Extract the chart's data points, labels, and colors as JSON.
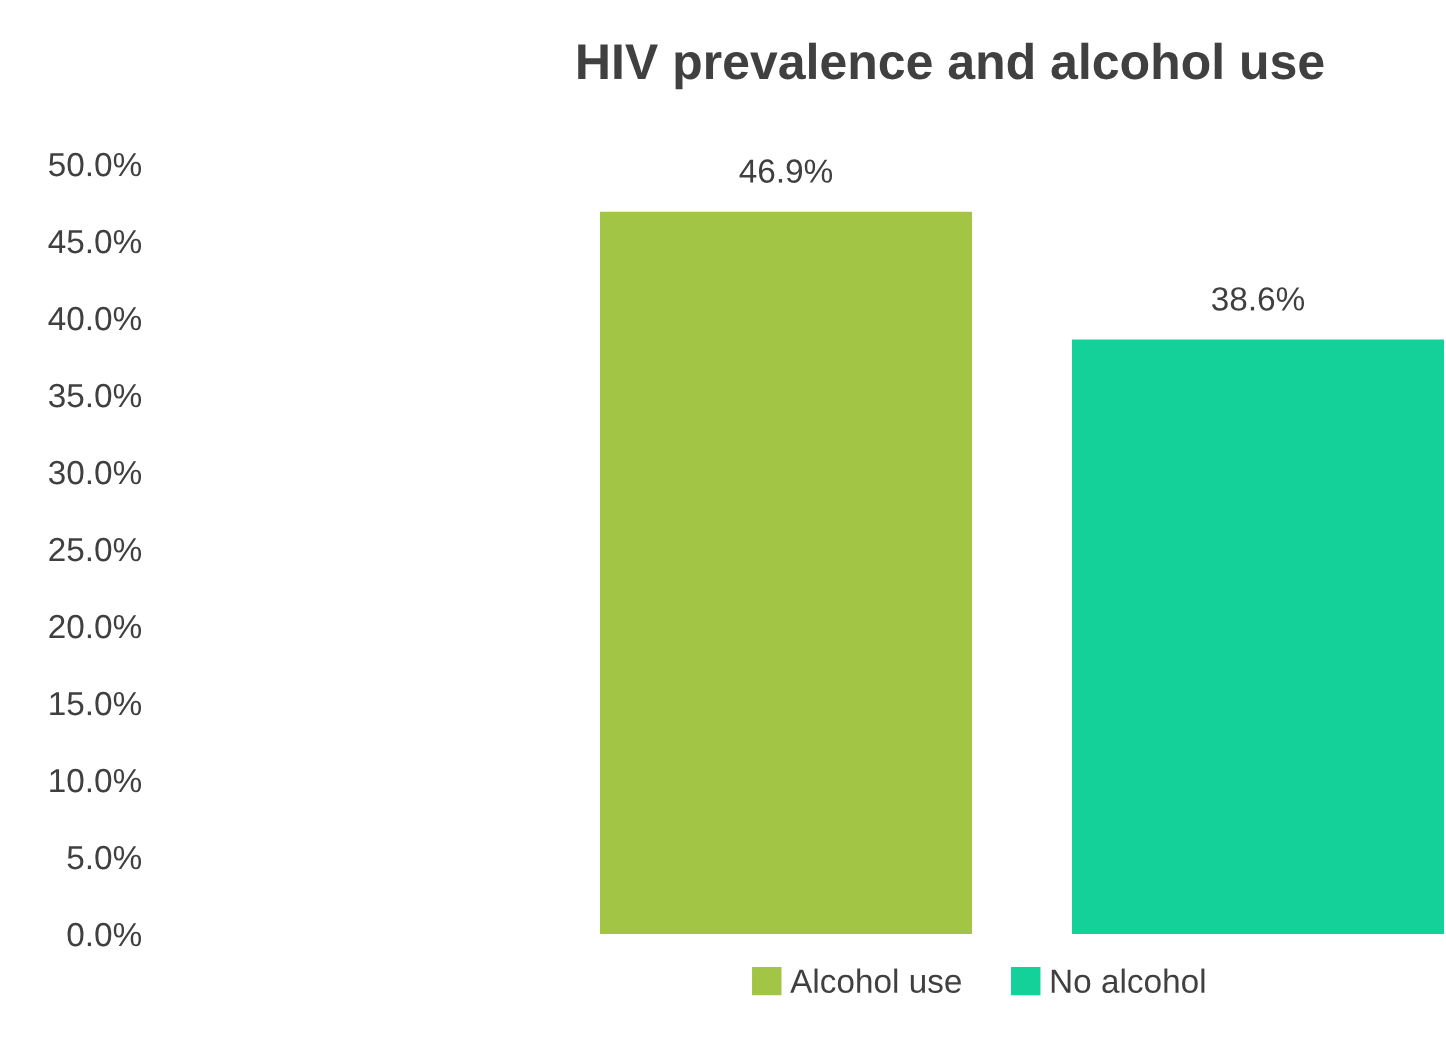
{
  "chart_data": {
    "type": "bar",
    "title": "HIV prevalence and alcohol use",
    "categories": [
      null
    ],
    "series": [
      {
        "name": "Alcohol use",
        "color": "#a2c545",
        "values": [
          46.9
        ],
        "value_labels": [
          "46.9%"
        ]
      },
      {
        "name": "No alcohol",
        "color": "#14d19a",
        "values": [
          38.6
        ],
        "value_labels": [
          "38.6%"
        ]
      }
    ],
    "ylim": [
      0,
      50
    ],
    "yticks": [
      {
        "value": 0,
        "label": "0.0%"
      },
      {
        "value": 5,
        "label": "5.0%"
      },
      {
        "value": 10,
        "label": "10.0%"
      },
      {
        "value": 15,
        "label": "15.0%"
      },
      {
        "value": 20,
        "label": "20.0%"
      },
      {
        "value": 25,
        "label": "25.0%"
      },
      {
        "value": 30,
        "label": "30.0%"
      },
      {
        "value": 35,
        "label": "35.0%"
      },
      {
        "value": 40,
        "label": "40.0%"
      },
      {
        "value": 45,
        "label": "45.0%"
      },
      {
        "value": 50,
        "label": "50.0%"
      }
    ],
    "grid": false,
    "legend": "bottom"
  }
}
